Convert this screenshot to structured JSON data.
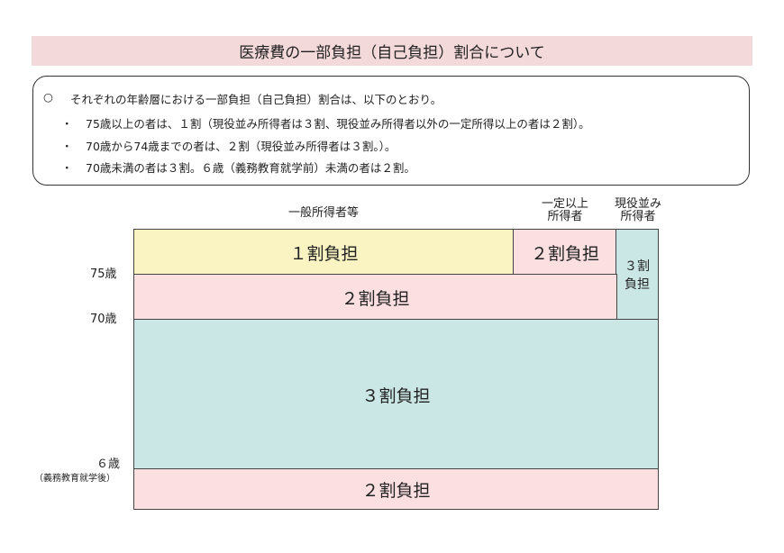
{
  "title": "医療費の一部負担（自己負担）割合について",
  "summary": {
    "lead_marker": "○",
    "lead": "それぞれの年齢層における一部負担（自己負担）割合は、以下のとおり。",
    "bullet": "・",
    "items": [
      "75歳以上の者は、１割（現役並み所得者は３割、現役並み所得者以外の一定所得以上の者は２割）。",
      "70歳から74歳までの者は、２割（現役並み所得者は３割。）。",
      "70歳未満の者は３割。６歳（義務教育就学前）未満の者は２割。"
    ]
  },
  "diagram": {
    "headers": {
      "general": "一般所得者等",
      "certain_income": "一定以上\n所得者",
      "active_income": "現役並み\n所得者"
    },
    "ages": {
      "a75": "75歳",
      "a70": "70歳",
      "a6": "６歳",
      "a6_note": "（義務教育就学後）"
    },
    "cells": {
      "c75_general": "１割負担",
      "c75_certain": "２割負担",
      "active": "３割\n負担",
      "c70": "２割負担",
      "c_mid": "３割負担",
      "c_child": "２割負担"
    },
    "colors": {
      "one_tenth": "#faf3c2",
      "two_tenths": "#fbdfe1",
      "three_tenths": "#cbe7e5"
    }
  }
}
